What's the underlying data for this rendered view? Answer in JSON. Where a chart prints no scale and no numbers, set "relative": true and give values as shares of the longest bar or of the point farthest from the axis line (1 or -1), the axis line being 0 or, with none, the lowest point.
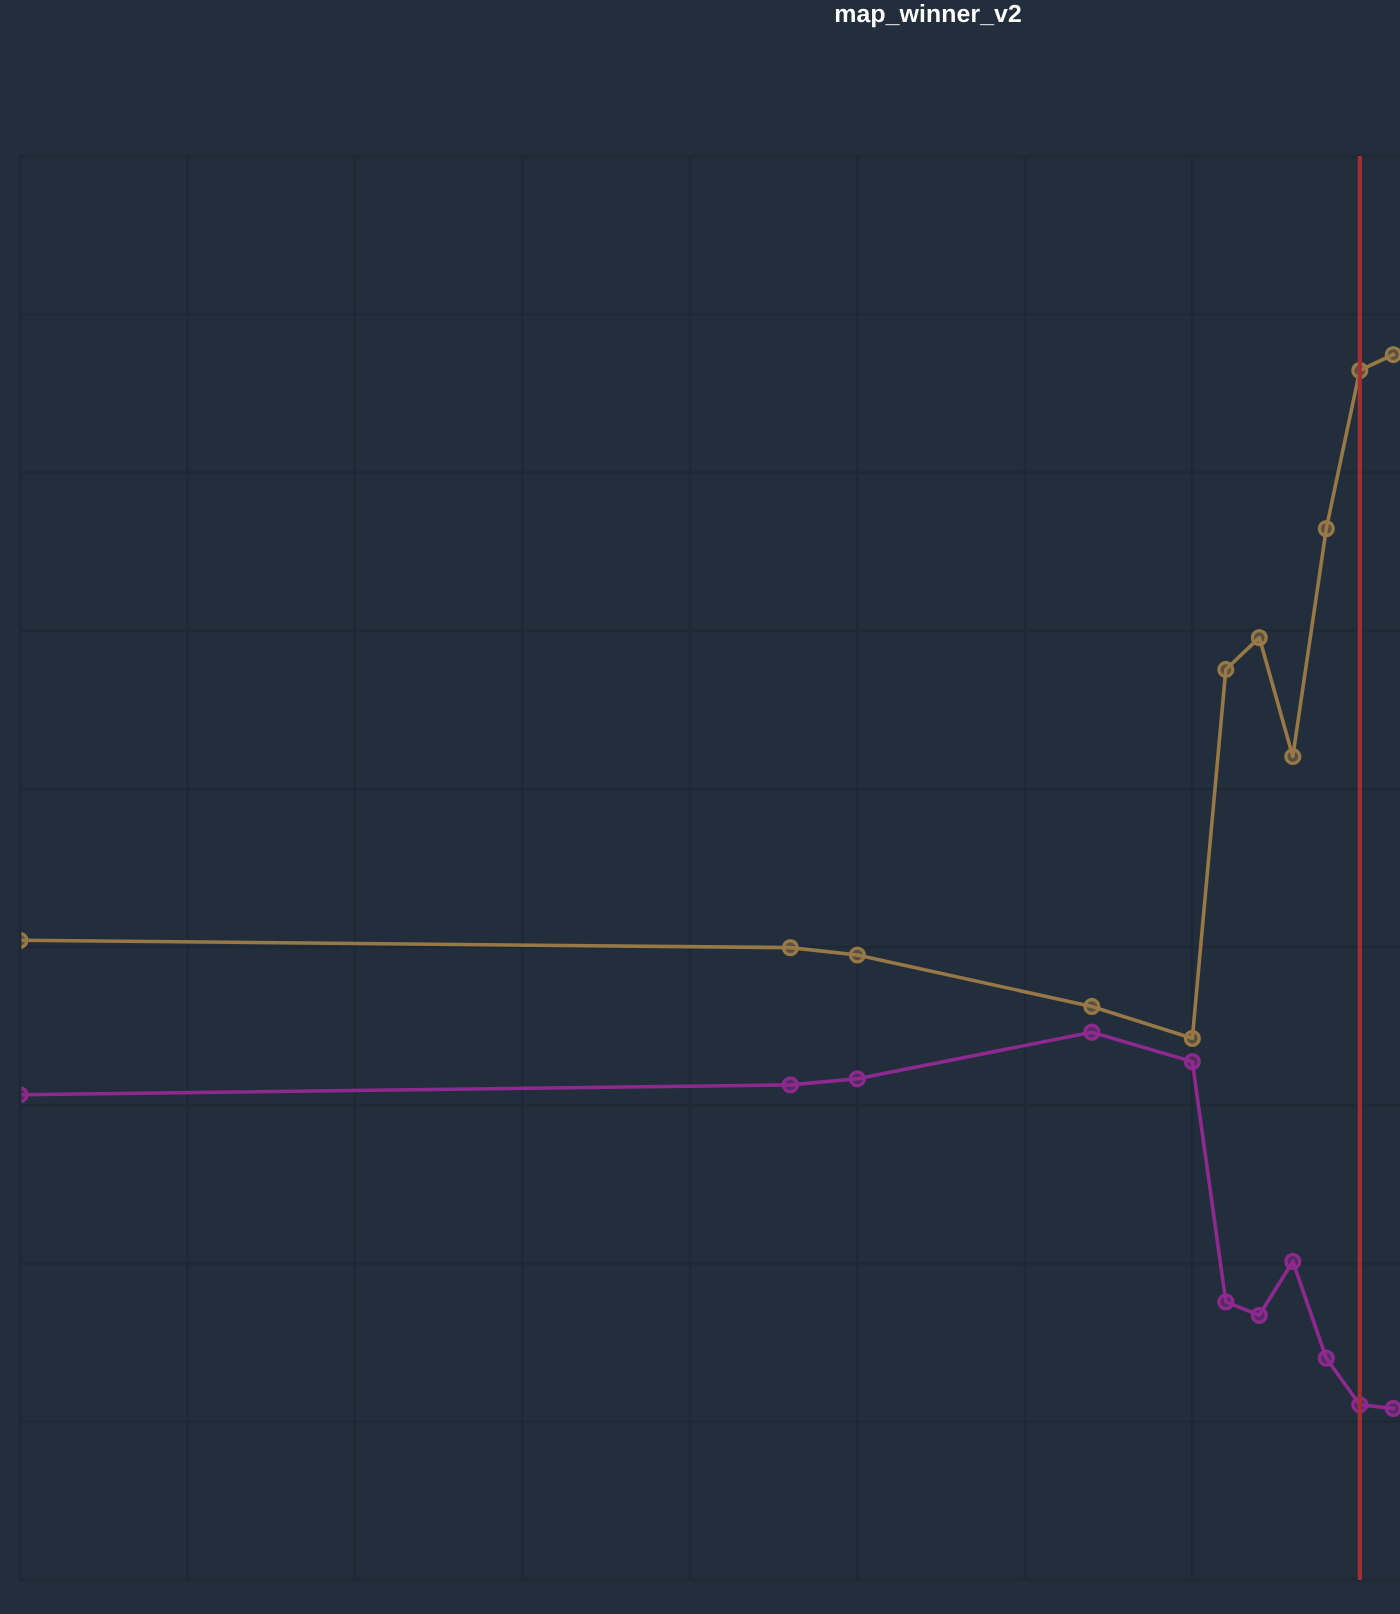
{
  "chart_data": {
    "type": "line",
    "title": "map_winner_v2",
    "relative": true,
    "grid": true,
    "marker": "circle",
    "line_style": "solid",
    "categories": [
      null,
      null,
      null,
      null,
      null,
      null,
      null,
      null,
      null,
      null,
      null,
      null,
      null,
      null,
      null,
      null,
      null,
      null,
      null,
      null,
      null,
      null,
      null,
      null,
      null,
      null,
      null,
      null,
      null,
      null,
      null,
      null,
      null,
      null,
      null,
      null,
      null,
      null,
      null,
      null,
      null,
      null
    ],
    "series": [
      {
        "color": "#977846",
        "values": [
          0.522,
          null,
          null,
          null,
          null,
          null,
          null,
          null,
          null,
          null,
          null,
          null,
          null,
          null,
          null,
          null,
          null,
          null,
          null,
          null,
          null,
          null,
          null,
          0.516,
          null,
          0.51,
          null,
          null,
          null,
          null,
          null,
          null,
          0.468,
          null,
          null,
          0.442,
          0.743,
          0.769,
          0.672,
          0.858,
          0.987,
          1.0
        ]
      },
      {
        "color": "#8e2a8f",
        "values": [
          0.396,
          null,
          null,
          null,
          null,
          null,
          null,
          null,
          null,
          null,
          null,
          null,
          null,
          null,
          null,
          null,
          null,
          null,
          null,
          null,
          null,
          null,
          null,
          0.404,
          null,
          0.409,
          null,
          null,
          null,
          null,
          null,
          null,
          0.447,
          null,
          null,
          0.423,
          0.227,
          0.216,
          0.26,
          0.181,
          0.143,
          0.14
        ]
      }
    ]
  }
}
